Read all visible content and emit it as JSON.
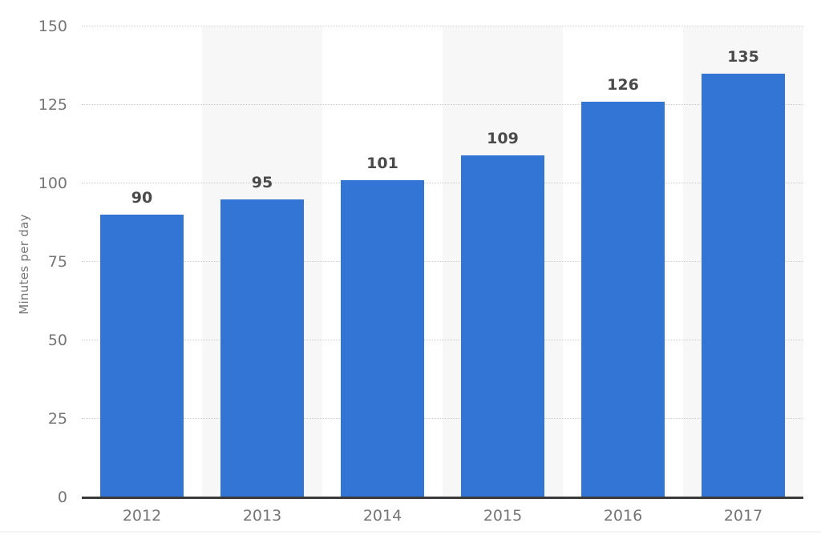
{
  "chart_data": {
    "type": "bar",
    "title": "",
    "categories": [
      "2012",
      "2013",
      "2014",
      "2015",
      "2016",
      "2017"
    ],
    "values": [
      90,
      95,
      101,
      109,
      126,
      135
    ],
    "value_labels": [
      "90",
      "95",
      "101",
      "109",
      "126",
      "135"
    ],
    "xlabel": "",
    "ylabel": "Minutes per day",
    "ylim": [
      0,
      150
    ],
    "yticks": [
      0,
      25,
      50,
      75,
      100,
      125,
      150
    ],
    "grid": "horizontal dotted gridlines",
    "legend": "none",
    "plot_background": "alternating category stripes",
    "colors": {
      "bar": "#3375d5",
      "stripe": "#f7f7f7",
      "background": "#ffffff",
      "axis_line": "#3a3a3a",
      "grid_line": "#cdcdcd",
      "tick_label": "#757575",
      "value_label": "#4a4a4a",
      "y_axis_title": "#757575"
    }
  }
}
